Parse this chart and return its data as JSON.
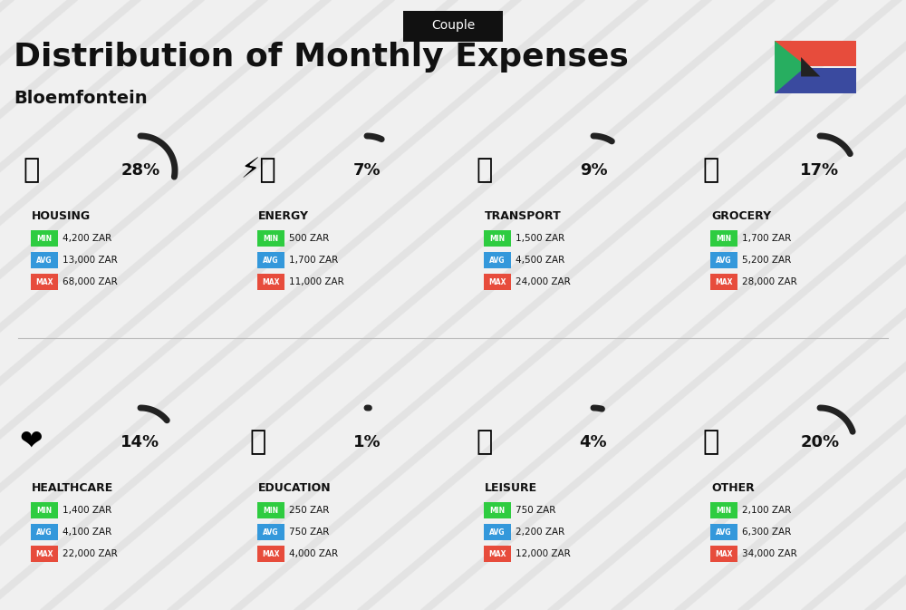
{
  "title": "Distribution of Monthly Expenses",
  "subtitle": "Bloemfontein",
  "tag": "Couple",
  "bg_color": "#f0f0f0",
  "categories": [
    {
      "name": "HOUSING",
      "pct": 28,
      "emoji": "🏢",
      "min_val": "4,200 ZAR",
      "avg_val": "13,000 ZAR",
      "max_val": "68,000 ZAR",
      "col": 0,
      "row": 0
    },
    {
      "name": "ENERGY",
      "pct": 7,
      "emoji": "⚡",
      "min_val": "500 ZAR",
      "avg_val": "1,700 ZAR",
      "max_val": "11,000 ZAR",
      "col": 1,
      "row": 0
    },
    {
      "name": "TRANSPORT",
      "pct": 9,
      "emoji": "🚌",
      "min_val": "1,500 ZAR",
      "avg_val": "4,500 ZAR",
      "max_val": "24,000 ZAR",
      "col": 2,
      "row": 0
    },
    {
      "name": "GROCERY",
      "pct": 17,
      "emoji": "🛒",
      "min_val": "1,700 ZAR",
      "avg_val": "5,200 ZAR",
      "max_val": "28,000 ZAR",
      "col": 3,
      "row": 0
    },
    {
      "name": "HEALTHCARE",
      "pct": 14,
      "emoji": "❤️",
      "min_val": "1,400 ZAR",
      "avg_val": "4,100 ZAR",
      "max_val": "22,000 ZAR",
      "col": 0,
      "row": 1
    },
    {
      "name": "EDUCATION",
      "pct": 1,
      "emoji": "🎓",
      "min_val": "250 ZAR",
      "avg_val": "750 ZAR",
      "max_val": "4,000 ZAR",
      "col": 1,
      "row": 1
    },
    {
      "name": "LEISURE",
      "pct": 4,
      "emoji": "🛍️",
      "min_val": "750 ZAR",
      "avg_val": "2,200 ZAR",
      "max_val": "12,000 ZAR",
      "col": 2,
      "row": 1
    },
    {
      "name": "OTHER",
      "pct": 20,
      "emoji": "👛",
      "min_val": "2,100 ZAR",
      "avg_val": "6,300 ZAR",
      "max_val": "34,000 ZAR",
      "col": 3,
      "row": 1
    }
  ],
  "min_color": "#2ecc40",
  "avg_color": "#3498db",
  "max_color": "#e74c3c",
  "label_color_text": "#ffffff",
  "dark_color": "#1a1a1a",
  "gray_circle_color": "#cccccc",
  "dark_circle_color": "#222222"
}
